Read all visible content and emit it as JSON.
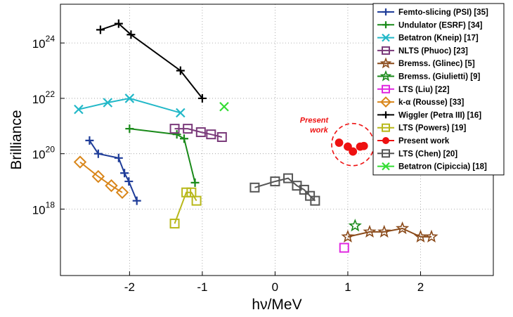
{
  "chart_data": {
    "type": "line",
    "title": "",
    "xlabel": "hν/MeV",
    "ylabel": "Brilliance",
    "xlim": [
      -2.95,
      3.0
    ],
    "ylim_log10": [
      15.6,
      25.4
    ],
    "y_scale": "log",
    "x_ticks": [
      -2,
      -1,
      0,
      1,
      2
    ],
    "x_tick_labels": [
      "-2",
      "-1",
      "0",
      "1",
      "2"
    ],
    "y_ticks": [
      {
        "base": "10",
        "exp": "24",
        "value": 1e+24
      },
      {
        "base": "10",
        "exp": "22",
        "value": 1e+22
      },
      {
        "base": "10",
        "exp": "20",
        "value": 1e+20
      },
      {
        "base": "10",
        "exp": "18",
        "value": 1e+18
      }
    ],
    "grid": true,
    "legend_position": "top-right",
    "series": [
      {
        "name": "Femto-slicing (PSI) [35]",
        "color": "#1f3d99",
        "marker": "plus",
        "line": true,
        "points": [
          [
            -2.55,
            3e+20
          ],
          [
            -2.43,
            1e+20
          ],
          [
            -2.15,
            7e+19
          ],
          [
            -2.07,
            2e+19
          ],
          [
            -2.01,
            1e+19
          ],
          [
            -1.9,
            2e+18
          ]
        ]
      },
      {
        "name": "Undulator (ESRF) [34]",
        "color": "#1a8a1a",
        "marker": "plus",
        "line": true,
        "points": [
          [
            -2.0,
            8e+20
          ],
          [
            -1.35,
            5e+20
          ],
          [
            -1.25,
            3.5e+20
          ],
          [
            -1.1,
            9e+18
          ]
        ]
      },
      {
        "name": "Betatron (Kneip) [17]",
        "color": "#22b8c8",
        "marker": "x",
        "line": true,
        "points": [
          [
            -2.7,
            4e+21
          ],
          [
            -2.3,
            7e+21
          ],
          [
            -2.0,
            1e+22
          ],
          [
            -1.3,
            3e+21
          ]
        ]
      },
      {
        "name": "NLTS (Phuoc) [23]",
        "color": "#7a3a7a",
        "marker": "square",
        "line": true,
        "points": [
          [
            -1.38,
            8e+20
          ],
          [
            -1.2,
            8e+20
          ],
          [
            -1.02,
            6e+20
          ],
          [
            -0.88,
            5e+20
          ],
          [
            -0.73,
            4e+20
          ]
        ]
      },
      {
        "name": "Bremss. (Glinec) [5]",
        "color": "#8a4a1a",
        "marker": "star",
        "line": true,
        "points": [
          [
            1.0,
            1e+17
          ],
          [
            1.3,
            1.5e+17
          ],
          [
            1.5,
            1.5e+17
          ],
          [
            1.75,
            2e+17
          ],
          [
            2.0,
            1e+17
          ],
          [
            2.15,
            1e+17
          ]
        ]
      },
      {
        "name": "Bremss. (Giulietti) [9]",
        "color": "#1a8a1a",
        "marker": "star",
        "line": false,
        "points": [
          [
            1.1,
            2.5e+17
          ]
        ]
      },
      {
        "name": "LTS (Liu) [22]",
        "color": "#e028e0",
        "marker": "square",
        "line": false,
        "points": [
          [
            0.95,
            4e+16
          ]
        ]
      },
      {
        "name": "k-α (Rousse) [33]",
        "color": "#d9861a",
        "marker": "diamond",
        "line": true,
        "points": [
          [
            -2.68,
            5e+19
          ],
          [
            -2.43,
            1.5e+19
          ],
          [
            -2.25,
            7e+18
          ],
          [
            -2.1,
            4e+18
          ]
        ]
      },
      {
        "name": "Wiggler (Petra III) [16]",
        "color": "#000000",
        "marker": "plus",
        "line": true,
        "points": [
          [
            -2.4,
            3e+24
          ],
          [
            -2.15,
            5e+24
          ],
          [
            -1.98,
            2e+24
          ],
          [
            -1.3,
            1e+23
          ],
          [
            -1.0,
            1e+22
          ]
        ]
      },
      {
        "name": "LTS (Powers) [19]",
        "color": "#b8b81a",
        "marker": "square",
        "line": true,
        "points": [
          [
            -1.38,
            3e+17
          ],
          [
            -1.22,
            4e+18
          ],
          [
            -1.15,
            4e+18
          ],
          [
            -1.08,
            2e+18
          ]
        ]
      },
      {
        "name": "Present work",
        "color": "#ee1111",
        "marker": "circle",
        "line": false,
        "points": [
          [
            0.88,
            2.5e+20
          ],
          [
            1.0,
            1.8e+20
          ],
          [
            1.07,
            1.2e+20
          ],
          [
            1.17,
            1.8e+20
          ],
          [
            1.22,
            1.9e+20
          ]
        ]
      },
      {
        "name": "LTS (Chen) [20]",
        "color": "#555555",
        "marker": "square",
        "line": true,
        "points": [
          [
            -0.28,
            6e+18
          ],
          [
            0.0,
            1e+19
          ],
          [
            0.18,
            1.3e+19
          ],
          [
            0.3,
            7e+18
          ],
          [
            0.4,
            5e+18
          ],
          [
            0.48,
            3e+18
          ],
          [
            0.55,
            2e+18
          ]
        ]
      },
      {
        "name": "Betatron (Cipiccia) [18]",
        "color": "#33dd33",
        "marker": "x",
        "line": false,
        "points": [
          [
            -0.7,
            5e+21
          ]
        ]
      }
    ],
    "annotations": [
      {
        "text": "Present",
        "color": "#ee1111"
      },
      {
        "text": "work",
        "color": "#ee1111"
      }
    ],
    "highlight_circle_color": "#ee1111"
  }
}
